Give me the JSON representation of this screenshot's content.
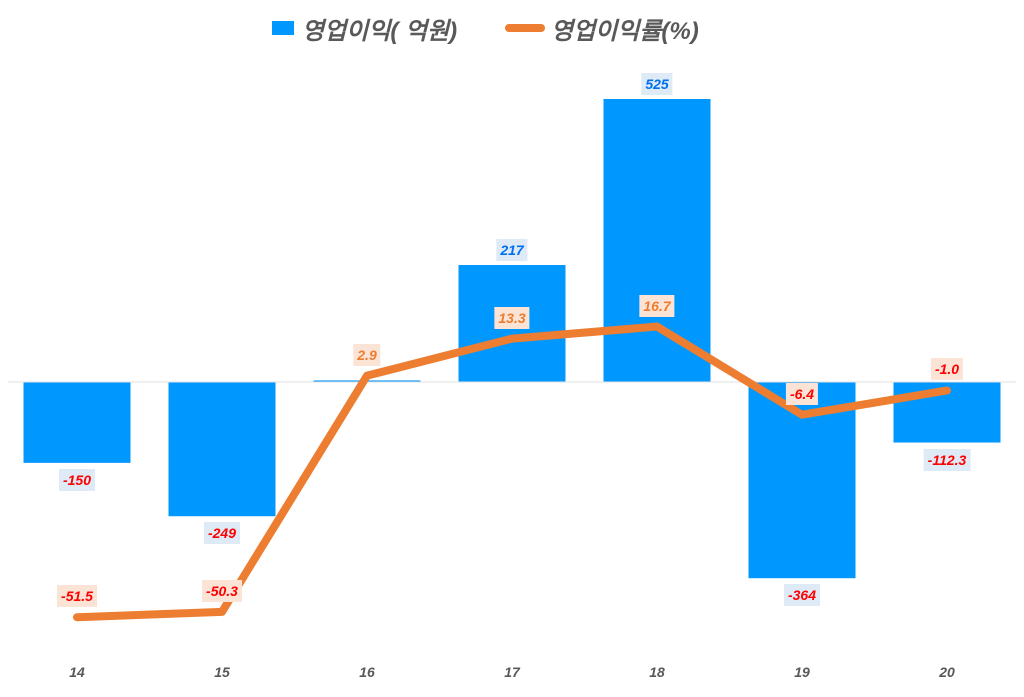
{
  "legend": {
    "bar_label": "영업이익( 억원)",
    "line_label": "영업이익률(%)"
  },
  "colors": {
    "bar": "#0098FF",
    "line": "#ED7D31",
    "negative_label": "#FF0000",
    "positive_bar_label": "#0070F0",
    "positive_line_label": "#ED7D31",
    "axis_text": "#595959"
  },
  "chart_data": {
    "type": "bar+line",
    "title": "",
    "categories": [
      "14",
      "15",
      "16",
      "17",
      "18",
      "19",
      "20"
    ],
    "series": [
      {
        "name": "영업이익( 억원)",
        "type": "bar",
        "axis": "primary",
        "values": [
          -150,
          -249,
          2.9,
          217,
          525,
          -364,
          -112.3
        ]
      },
      {
        "name": "영업이익률(%)",
        "type": "line",
        "axis": "secondary",
        "values": [
          -51.5,
          -50.3,
          2.9,
          13.3,
          16.7,
          -6.4,
          -1.0
        ]
      }
    ],
    "xlabel": "",
    "ylabel": "",
    "grid": false,
    "legend_position": "top",
    "bar_labels": [
      "-150",
      "-249",
      "",
      "217",
      "525",
      "-364",
      "-112.3"
    ],
    "line_labels": [
      "-51.5",
      "-50.3",
      "2.9",
      "13.3",
      "16.7",
      "-6.4",
      "-1.0"
    ]
  }
}
